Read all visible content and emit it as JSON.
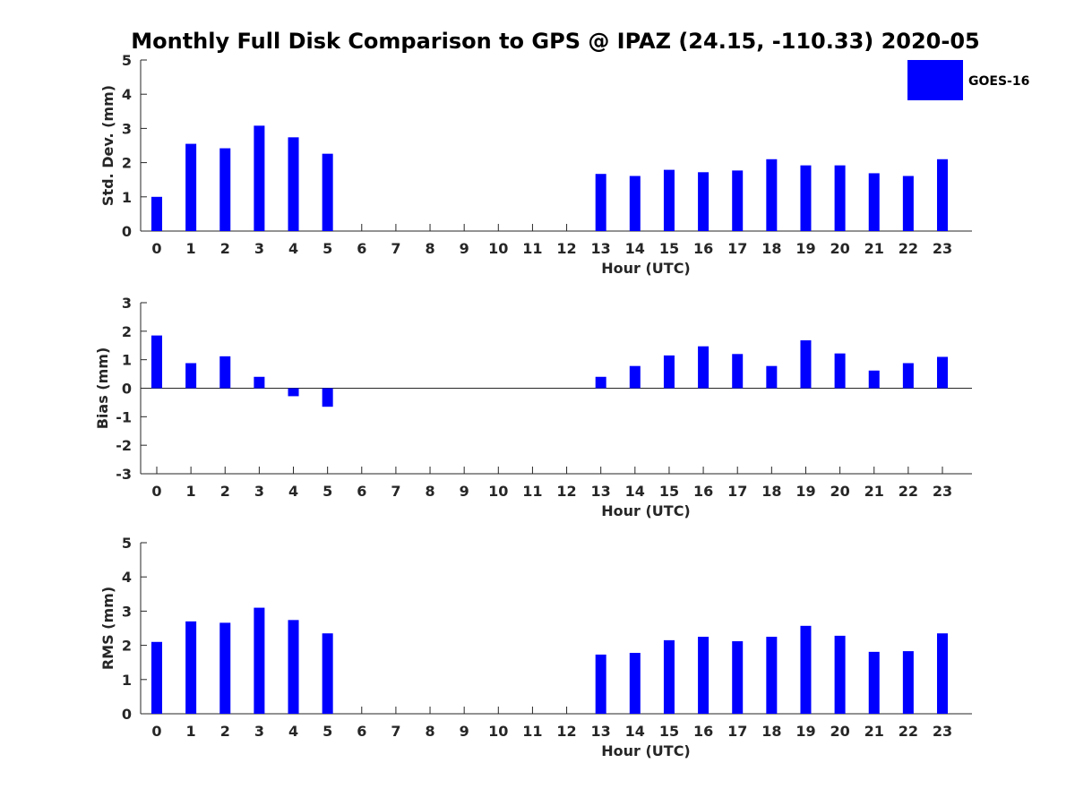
{
  "title": "Monthly Full Disk Comparison to GPS @ IPAZ (24.15, -110.33) 2020-05",
  "colors": {
    "bar": "#0000ff",
    "axis": "#262626"
  },
  "legend": {
    "label": "GOES-16",
    "placement": "top-right"
  },
  "chart_data": [
    {
      "type": "bar",
      "xlabel": "Hour (UTC)",
      "ylabel": "Std. Dev. (mm)",
      "ylim": [
        0,
        5
      ],
      "yticks": [
        "0",
        "1",
        "2",
        "3",
        "4",
        "5"
      ],
      "categories": [
        "0",
        "1",
        "2",
        "3",
        "4",
        "5",
        "6",
        "7",
        "8",
        "9",
        "10",
        "11",
        "12",
        "13",
        "14",
        "15",
        "16",
        "17",
        "18",
        "19",
        "20",
        "21",
        "22",
        "23"
      ],
      "series": [
        {
          "name": "GOES-16",
          "values": [
            1.0,
            2.55,
            2.42,
            3.08,
            2.74,
            2.26,
            null,
            null,
            null,
            null,
            null,
            null,
            null,
            1.67,
            1.61,
            1.79,
            1.72,
            1.77,
            2.1,
            1.92,
            1.92,
            1.69,
            1.61,
            2.1
          ]
        }
      ],
      "grid": false
    },
    {
      "type": "bar",
      "xlabel": "Hour (UTC)",
      "ylabel": "Bias (mm)",
      "ylim": [
        -3,
        3
      ],
      "yticks": [
        "-3",
        "-2",
        "-1",
        "0",
        "1",
        "2",
        "3"
      ],
      "categories": [
        "0",
        "1",
        "2",
        "3",
        "4",
        "5",
        "6",
        "7",
        "8",
        "9",
        "10",
        "11",
        "12",
        "13",
        "14",
        "15",
        "16",
        "17",
        "18",
        "19",
        "20",
        "21",
        "22",
        "23"
      ],
      "series": [
        {
          "name": "GOES-16",
          "values": [
            1.85,
            0.88,
            1.12,
            0.4,
            -0.28,
            -0.65,
            null,
            null,
            null,
            null,
            null,
            null,
            null,
            0.4,
            0.78,
            1.15,
            1.47,
            1.2,
            0.78,
            1.68,
            1.22,
            0.62,
            0.88,
            1.1
          ]
        }
      ],
      "grid": false
    },
    {
      "type": "bar",
      "xlabel": "Hour (UTC)",
      "ylabel": "RMS (mm)",
      "ylim": [
        0,
        5
      ],
      "yticks": [
        "0",
        "1",
        "2",
        "3",
        "4",
        "5"
      ],
      "categories": [
        "0",
        "1",
        "2",
        "3",
        "4",
        "5",
        "6",
        "7",
        "8",
        "9",
        "10",
        "11",
        "12",
        "13",
        "14",
        "15",
        "16",
        "17",
        "18",
        "19",
        "20",
        "21",
        "22",
        "23"
      ],
      "series": [
        {
          "name": "GOES-16",
          "values": [
            2.1,
            2.7,
            2.66,
            3.1,
            2.74,
            2.35,
            null,
            null,
            null,
            null,
            null,
            null,
            null,
            1.73,
            1.78,
            2.15,
            2.25,
            2.12,
            2.25,
            2.57,
            2.28,
            1.81,
            1.83,
            2.35
          ]
        }
      ],
      "grid": false
    }
  ]
}
